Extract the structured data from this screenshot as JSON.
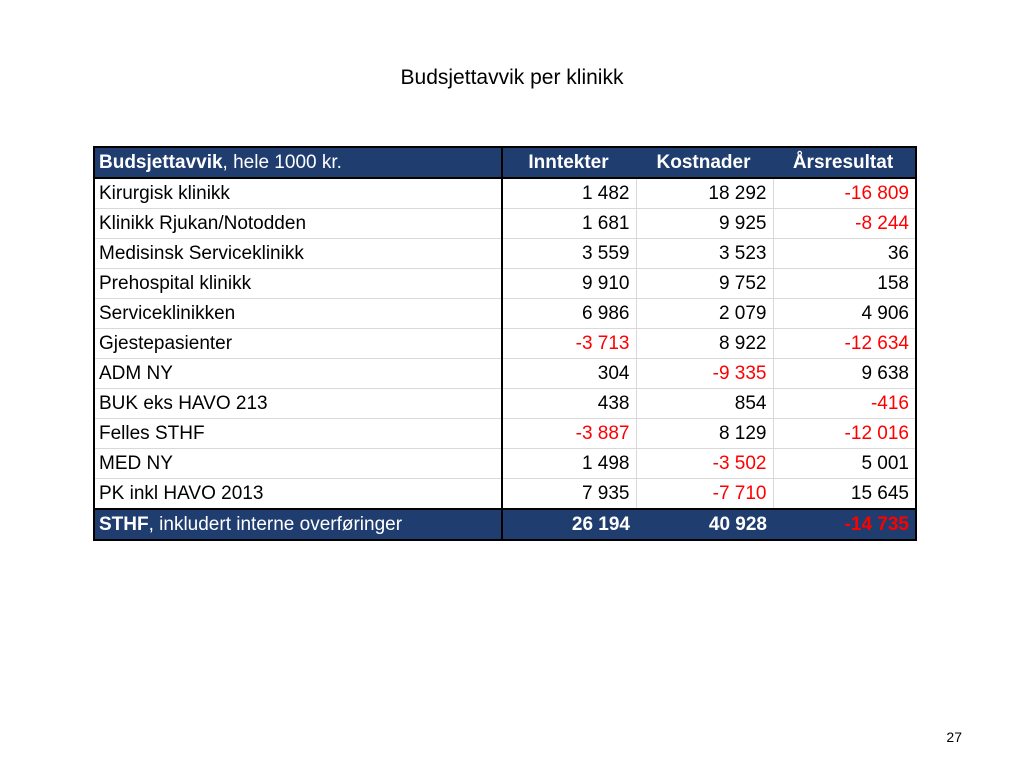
{
  "title": "Budsjettavvik per klinikk",
  "table": {
    "header": {
      "label_bold": "Budsjettavvik",
      "label_rest": ", hele 1000 kr.",
      "columns": [
        "Inntekter",
        "Kostnader",
        "Årsresultat"
      ]
    },
    "rows": [
      {
        "label": "Kirurgisk klinikk",
        "values": [
          "1 482",
          "18 292",
          "-16 809"
        ]
      },
      {
        "label": "Klinikk Rjukan/Notodden",
        "values": [
          "1 681",
          "9 925",
          "-8 244"
        ]
      },
      {
        "label": "Medisinsk Serviceklinikk",
        "values": [
          "3 559",
          "3 523",
          "36"
        ]
      },
      {
        "label": "Prehospital klinikk",
        "values": [
          "9 910",
          "9 752",
          "158"
        ]
      },
      {
        "label": "Serviceklinikken",
        "values": [
          "6 986",
          "2 079",
          "4 906"
        ]
      },
      {
        "label": "Gjestepasienter",
        "values": [
          "-3 713",
          "8 922",
          "-12 634"
        ]
      },
      {
        "label": "ADM NY",
        "values": [
          "304",
          "-9 335",
          "9 638"
        ]
      },
      {
        "label": "BUK eks HAVO 213",
        "values": [
          "438",
          "854",
          "-416"
        ]
      },
      {
        "label": "Felles STHF",
        "values": [
          "-3 887",
          "8 129",
          "-12 016"
        ]
      },
      {
        "label": "MED NY",
        "values": [
          "1 498",
          "-3 502",
          "5 001"
        ]
      },
      {
        "label": "PK inkl HAVO 2013",
        "values": [
          "7 935",
          "-7 710",
          "15 645"
        ]
      }
    ],
    "total": {
      "label_bold": "STHF",
      "label_rest": ", inkludert interne overføringer",
      "values": [
        "26 194",
        "40 928",
        "-14 735"
      ]
    }
  },
  "page_number": "27",
  "colors": {
    "header_bg": "#1f3d6e",
    "negative": "#ff0000"
  }
}
